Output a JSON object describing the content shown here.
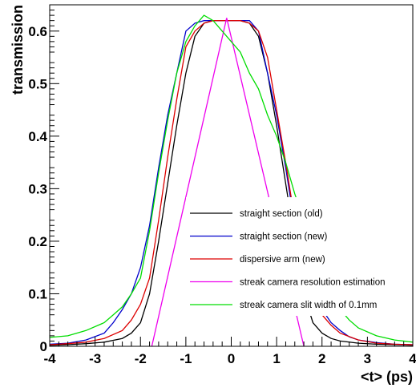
{
  "chart_data": {
    "type": "line",
    "title": "",
    "xlabel": "<t> (ps)",
    "ylabel": "transmission",
    "xlim": [
      -4,
      4
    ],
    "ylim": [
      0,
      0.65
    ],
    "xticks": [
      -4,
      -3,
      -2,
      -1,
      0,
      1,
      2,
      3,
      4
    ],
    "xtick_labels": [
      "-4",
      "-3",
      "-2",
      "-1",
      "0",
      "1",
      "2",
      "3",
      "4"
    ],
    "yticks": [
      0,
      0.1,
      0.2,
      0.3,
      0.4,
      0.5,
      0.6
    ],
    "ytick_labels": [
      "0",
      "0.1",
      "0.2",
      "0.3",
      "0.4",
      "0.5",
      "0.6"
    ],
    "grid": false,
    "legend_position": "lower-right",
    "series": [
      {
        "name": "straight section (old)",
        "color": "#000000",
        "x": [
          -4,
          -3.6,
          -3.2,
          -2.8,
          -2.4,
          -2.2,
          -2.0,
          -1.8,
          -1.6,
          -1.4,
          -1.2,
          -1.0,
          -0.8,
          -0.6,
          -0.4,
          -0.2,
          0,
          0.2,
          0.4,
          0.6,
          0.8,
          1.0,
          1.2,
          1.4,
          1.6,
          1.8,
          2.0,
          2.2,
          2.4,
          2.8,
          3.2,
          3.6,
          4
        ],
        "y": [
          0.002,
          0.003,
          0.005,
          0.008,
          0.015,
          0.025,
          0.045,
          0.1,
          0.2,
          0.31,
          0.42,
          0.52,
          0.59,
          0.615,
          0.62,
          0.62,
          0.62,
          0.62,
          0.615,
          0.59,
          0.52,
          0.42,
          0.31,
          0.2,
          0.1,
          0.045,
          0.025,
          0.015,
          0.01,
          0.006,
          0.004,
          0.003,
          0.002
        ]
      },
      {
        "name": "straight section (new)",
        "color": "#0000cc",
        "x": [
          -4,
          -3.6,
          -3.2,
          -2.8,
          -2.6,
          -2.4,
          -2.2,
          -2.0,
          -1.8,
          -1.6,
          -1.4,
          -1.2,
          -1.0,
          -0.8,
          -0.6,
          -0.4,
          -0.2,
          0,
          0.2,
          0.4,
          0.6,
          0.8,
          1.0,
          1.2,
          1.4,
          1.6,
          1.8,
          2.0,
          2.2,
          2.4,
          2.6,
          2.8,
          3.2,
          3.6,
          4
        ],
        "y": [
          0.004,
          0.006,
          0.012,
          0.025,
          0.045,
          0.07,
          0.1,
          0.15,
          0.23,
          0.34,
          0.44,
          0.52,
          0.6,
          0.615,
          0.62,
          0.62,
          0.62,
          0.62,
          0.62,
          0.62,
          0.6,
          0.52,
          0.44,
          0.34,
          0.23,
          0.15,
          0.1,
          0.07,
          0.045,
          0.03,
          0.018,
          0.012,
          0.007,
          0.004,
          0.003
        ]
      },
      {
        "name": "dispersive arm (new)",
        "color": "#dd0000",
        "x": [
          -4,
          -3.6,
          -3.2,
          -2.8,
          -2.4,
          -2.2,
          -2.0,
          -1.8,
          -1.6,
          -1.4,
          -1.2,
          -1.0,
          -0.8,
          -0.6,
          -0.4,
          -0.2,
          0,
          0.2,
          0.4,
          0.6,
          0.8,
          1.0,
          1.2,
          1.4,
          1.6,
          1.8,
          2.0,
          2.2,
          2.4,
          2.8,
          3.2,
          3.6,
          4
        ],
        "y": [
          0.003,
          0.005,
          0.008,
          0.015,
          0.03,
          0.05,
          0.08,
          0.13,
          0.24,
          0.36,
          0.47,
          0.57,
          0.6,
          0.615,
          0.62,
          0.62,
          0.62,
          0.62,
          0.615,
          0.6,
          0.55,
          0.45,
          0.35,
          0.24,
          0.14,
          0.09,
          0.06,
          0.04,
          0.025,
          0.012,
          0.006,
          0.004,
          0.003
        ]
      },
      {
        "name": "streak camera resolution estimation",
        "color": "#ee00ee",
        "x": [
          -1.75,
          -0.1,
          1.6
        ],
        "y": [
          0.0,
          0.625,
          0.0
        ]
      },
      {
        "name": "streak camera slit width of 0.1mm",
        "color": "#00dd00",
        "x": [
          -4,
          -3.6,
          -3.2,
          -2.8,
          -2.6,
          -2.4,
          -2.2,
          -2.0,
          -1.8,
          -1.6,
          -1.4,
          -1.2,
          -1.0,
          -0.8,
          -0.6,
          -0.4,
          -0.2,
          0,
          0.2,
          0.4,
          0.6,
          0.8,
          1.0,
          1.2,
          1.4,
          1.6,
          1.8,
          2.0,
          2.2,
          2.4,
          2.6,
          2.8,
          3.2,
          3.6,
          4
        ],
        "y": [
          0.017,
          0.02,
          0.03,
          0.045,
          0.06,
          0.075,
          0.1,
          0.13,
          0.22,
          0.33,
          0.43,
          0.52,
          0.58,
          0.61,
          0.63,
          0.62,
          0.6,
          0.58,
          0.56,
          0.52,
          0.49,
          0.44,
          0.4,
          0.35,
          0.29,
          0.24,
          0.18,
          0.13,
          0.09,
          0.07,
          0.05,
          0.035,
          0.02,
          0.012,
          0.008
        ]
      }
    ]
  }
}
